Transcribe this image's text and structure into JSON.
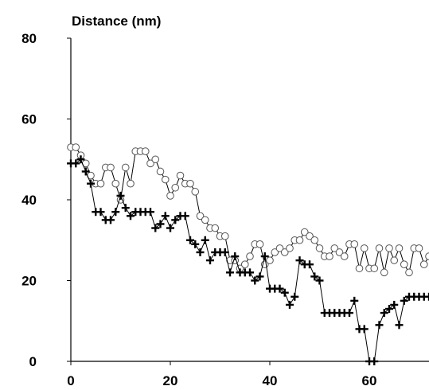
{
  "chart_data": {
    "type": "line",
    "title": "",
    "xlabel": "",
    "ylabel": "Distance (nm)",
    "xlim": [
      0,
      72
    ],
    "ylim": [
      0,
      80
    ],
    "x_ticks": [
      0,
      20,
      40,
      60
    ],
    "y_ticks": [
      0,
      20,
      40,
      60,
      80
    ],
    "grid": false,
    "legend": "none",
    "series": [
      {
        "marker": "circle",
        "color": "#000000",
        "points": [
          [
            0,
            53
          ],
          [
            1,
            53
          ],
          [
            2,
            51
          ],
          [
            3,
            49
          ],
          [
            4,
            46
          ],
          [
            5,
            44
          ],
          [
            6,
            44
          ],
          [
            7,
            48
          ],
          [
            8,
            48
          ],
          [
            9,
            44
          ],
          [
            10,
            40
          ],
          [
            11,
            48
          ],
          [
            12,
            44
          ],
          [
            13,
            52
          ],
          [
            14,
            52
          ],
          [
            15,
            52
          ],
          [
            16,
            49
          ],
          [
            17,
            50
          ],
          [
            18,
            47
          ],
          [
            19,
            45
          ],
          [
            20,
            41
          ],
          [
            21,
            43
          ],
          [
            22,
            46
          ],
          [
            23,
            44
          ],
          [
            24,
            44
          ],
          [
            25,
            42
          ],
          [
            26,
            36
          ],
          [
            27,
            35
          ],
          [
            28,
            33
          ],
          [
            29,
            33
          ],
          [
            30,
            31
          ],
          [
            31,
            31
          ],
          [
            32,
            25
          ],
          [
            33,
            25
          ],
          [
            34,
            23
          ],
          [
            35,
            24
          ],
          [
            36,
            26
          ],
          [
            37,
            29
          ],
          [
            38,
            29
          ],
          [
            39,
            24
          ],
          [
            40,
            25
          ],
          [
            41,
            27
          ],
          [
            42,
            28
          ],
          [
            43,
            27
          ],
          [
            44,
            28
          ],
          [
            45,
            30
          ],
          [
            46,
            30
          ],
          [
            47,
            32
          ],
          [
            48,
            31
          ],
          [
            49,
            30
          ],
          [
            50,
            28
          ],
          [
            51,
            26
          ],
          [
            52,
            26
          ],
          [
            53,
            28
          ],
          [
            54,
            27
          ],
          [
            55,
            26
          ],
          [
            56,
            29
          ],
          [
            57,
            29
          ],
          [
            58,
            23
          ],
          [
            59,
            28
          ],
          [
            60,
            23
          ],
          [
            61,
            23
          ],
          [
            62,
            28
          ],
          [
            63,
            22
          ],
          [
            64,
            28
          ],
          [
            65,
            25
          ],
          [
            66,
            28
          ],
          [
            67,
            24
          ],
          [
            68,
            22
          ],
          [
            69,
            28
          ],
          [
            70,
            28
          ],
          [
            71,
            24
          ],
          [
            72,
            26
          ]
        ]
      },
      {
        "marker": "plus",
        "color": "#000000",
        "points": [
          [
            0,
            49
          ],
          [
            1,
            49
          ],
          [
            2,
            50
          ],
          [
            3,
            47
          ],
          [
            4,
            44
          ],
          [
            5,
            37
          ],
          [
            6,
            37
          ],
          [
            7,
            35
          ],
          [
            8,
            35
          ],
          [
            9,
            37
          ],
          [
            10,
            41
          ],
          [
            11,
            38
          ],
          [
            12,
            36
          ],
          [
            13,
            37
          ],
          [
            14,
            37
          ],
          [
            15,
            37
          ],
          [
            16,
            37
          ],
          [
            17,
            33
          ],
          [
            18,
            34
          ],
          [
            19,
            36
          ],
          [
            20,
            33
          ],
          [
            21,
            35
          ],
          [
            22,
            36
          ],
          [
            23,
            36
          ],
          [
            24,
            30
          ],
          [
            25,
            29
          ],
          [
            26,
            27
          ],
          [
            27,
            30
          ],
          [
            28,
            25
          ],
          [
            29,
            27
          ],
          [
            30,
            27
          ],
          [
            31,
            27
          ],
          [
            32,
            22
          ],
          [
            33,
            26
          ],
          [
            34,
            22
          ],
          [
            35,
            22
          ],
          [
            36,
            22
          ],
          [
            37,
            20
          ],
          [
            38,
            21
          ],
          [
            39,
            26
          ],
          [
            40,
            18
          ],
          [
            41,
            18
          ],
          [
            42,
            18
          ],
          [
            43,
            17
          ],
          [
            44,
            14
          ],
          [
            45,
            16
          ],
          [
            46,
            25
          ],
          [
            47,
            24
          ],
          [
            48,
            24
          ],
          [
            49,
            21
          ],
          [
            50,
            20
          ],
          [
            51,
            12
          ],
          [
            52,
            12
          ],
          [
            53,
            12
          ],
          [
            54,
            12
          ],
          [
            55,
            12
          ],
          [
            56,
            12
          ],
          [
            57,
            15
          ],
          [
            58,
            8
          ],
          [
            59,
            8
          ],
          [
            60,
            0
          ],
          [
            61,
            0
          ],
          [
            62,
            9
          ],
          [
            63,
            12
          ],
          [
            64,
            13
          ],
          [
            65,
            14
          ],
          [
            66,
            9
          ],
          [
            67,
            15
          ],
          [
            68,
            16
          ],
          [
            69,
            16
          ],
          [
            70,
            16
          ],
          [
            71,
            16
          ],
          [
            72,
            16
          ]
        ]
      }
    ]
  }
}
